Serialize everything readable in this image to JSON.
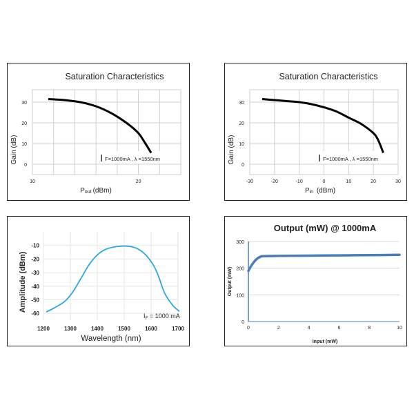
{
  "chart_data": [
    {
      "type": "line",
      "title": "Saturation Characteristics",
      "xlabel_main": "P",
      "xlabel_sub": "out",
      "xlabel_unit": "(dBm)",
      "ylabel": "Gain (dB)",
      "annotation_main": "I",
      "annotation_sub": "F=1000mA , λ =1550nm",
      "xlim": [
        10,
        24
      ],
      "ylim": [
        -5,
        36
      ],
      "xticks": [
        10,
        20
      ],
      "yticks": [
        0,
        10,
        20,
        30
      ],
      "grid": true,
      "series": [
        {
          "x": [
            11.5,
            13,
            14.5,
            16,
            17.5,
            19,
            20,
            20.6,
            21.2
          ],
          "y": [
            31.5,
            31,
            30,
            28,
            24.5,
            19.5,
            15,
            10.5,
            5.5
          ]
        }
      ]
    },
    {
      "type": "line",
      "title": "Saturation Characteristics",
      "xlabel_main": "P",
      "xlabel_sub": "in",
      "xlabel_unit": " (dBm)",
      "ylabel": "Gain (dB)",
      "annotation_main": "I",
      "annotation_sub": "F=1000mA , λ =1550nm",
      "xlim": [
        -30,
        30
      ],
      "ylim": [
        -5,
        36
      ],
      "xticks": [
        -30,
        -20,
        -10,
        0,
        10,
        20,
        30
      ],
      "yticks": [
        0,
        10,
        20,
        30
      ],
      "grid": true,
      "series": [
        {
          "x": [
            -25,
            -20,
            -15,
            -10,
            -5,
            0,
            5,
            10,
            15,
            20,
            22,
            24
          ],
          "y": [
            31.5,
            31,
            30.5,
            30,
            29,
            27.5,
            25.5,
            22.5,
            19.5,
            15,
            11.5,
            5.5
          ]
        }
      ]
    },
    {
      "type": "line",
      "xlabel": "Wavelength (nm)",
      "ylabel": "Amplitude (dBm)",
      "annotation": "I",
      "annotation_sub": "F",
      "annotation_rest": " = 1000 mA",
      "xlim": [
        1200,
        1700
      ],
      "ylim": [
        -65,
        0
      ],
      "xticks": [
        1200,
        1300,
        1400,
        1500,
        1600,
        1700
      ],
      "yticks": [
        -10,
        -20,
        -30,
        -40,
        -50,
        -60
      ],
      "grid": true,
      "color": "#2aa7e0",
      "series": [
        {
          "x": [
            1210,
            1240,
            1280,
            1310,
            1340,
            1370,
            1400,
            1430,
            1460,
            1490,
            1520,
            1550,
            1580,
            1610,
            1630,
            1650,
            1680,
            1705
          ],
          "y": [
            -59,
            -56,
            -51,
            -44,
            -34,
            -24,
            -17,
            -13,
            -11.2,
            -10.5,
            -10.7,
            -12.5,
            -17,
            -25,
            -34,
            -45,
            -54,
            -58.5
          ]
        }
      ]
    },
    {
      "type": "line",
      "title": "Output (mW) @ 1000mA",
      "xlabel": "Input (mW)",
      "ylabel": "Output (mW)",
      "xlim": [
        0,
        10
      ],
      "ylim": [
        0,
        300
      ],
      "xticks": [
        0,
        2,
        4,
        6,
        8,
        10
      ],
      "yticks": [
        0,
        100,
        200,
        300
      ],
      "grid": true,
      "color": "#4a7ebb",
      "series": [
        {
          "x": [
            0,
            0.2,
            0.5,
            0.8,
            1,
            2,
            4,
            6,
            8,
            10
          ],
          "y": [
            190,
            210,
            232,
            243,
            245,
            246,
            247,
            248,
            249,
            250
          ]
        }
      ]
    }
  ]
}
